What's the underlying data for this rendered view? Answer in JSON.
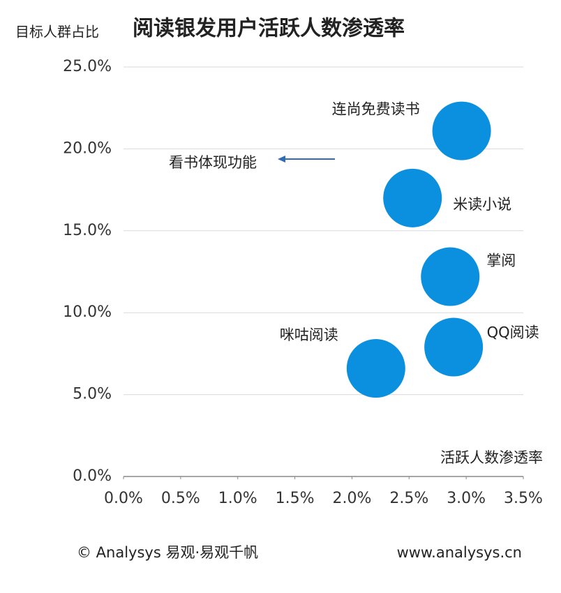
{
  "chart_data": {
    "type": "scatter",
    "title": "阅读银发用户活跃人数渗透率",
    "y_label": "目标人群占比",
    "x_label": "活跃人数渗透率",
    "annotation": "看书体现功能",
    "footer_left": "© Analysys 易观·易观千帆",
    "footer_right": "www.analysys.cn",
    "color": "#0b8fdf",
    "labels": [
      "连尚免费读书",
      "米读小说",
      "掌阅",
      "QQ阅读",
      "咪咕阅读"
    ],
    "x": [
      2.96,
      2.53,
      2.86,
      2.89,
      2.21
    ],
    "values": [
      21.1,
      17.0,
      12.2,
      7.9,
      6.6
    ],
    "xlim": [
      0,
      3.5
    ],
    "ylim": [
      0,
      25
    ],
    "xticks": [
      {
        "value": 0,
        "label": "0.0%"
      },
      {
        "value": 0.5,
        "label": "0.5%"
      },
      {
        "value": 1,
        "label": "1.0%"
      },
      {
        "value": 1.5,
        "label": "1.5%"
      },
      {
        "value": 2,
        "label": "2.0%"
      },
      {
        "value": 2.5,
        "label": "2.5%"
      },
      {
        "value": 3,
        "label": "3.0%"
      },
      {
        "value": 3.5,
        "label": "3.5%"
      }
    ],
    "yticks": [
      {
        "value": 0,
        "label": "0.0%"
      },
      {
        "value": 5,
        "label": "5.0%"
      },
      {
        "value": 10,
        "label": "10.0%"
      },
      {
        "value": 15,
        "label": "15.0%"
      },
      {
        "value": 20,
        "label": "20.0%"
      },
      {
        "value": 25,
        "label": "25.0%"
      }
    ],
    "grid": true
  }
}
